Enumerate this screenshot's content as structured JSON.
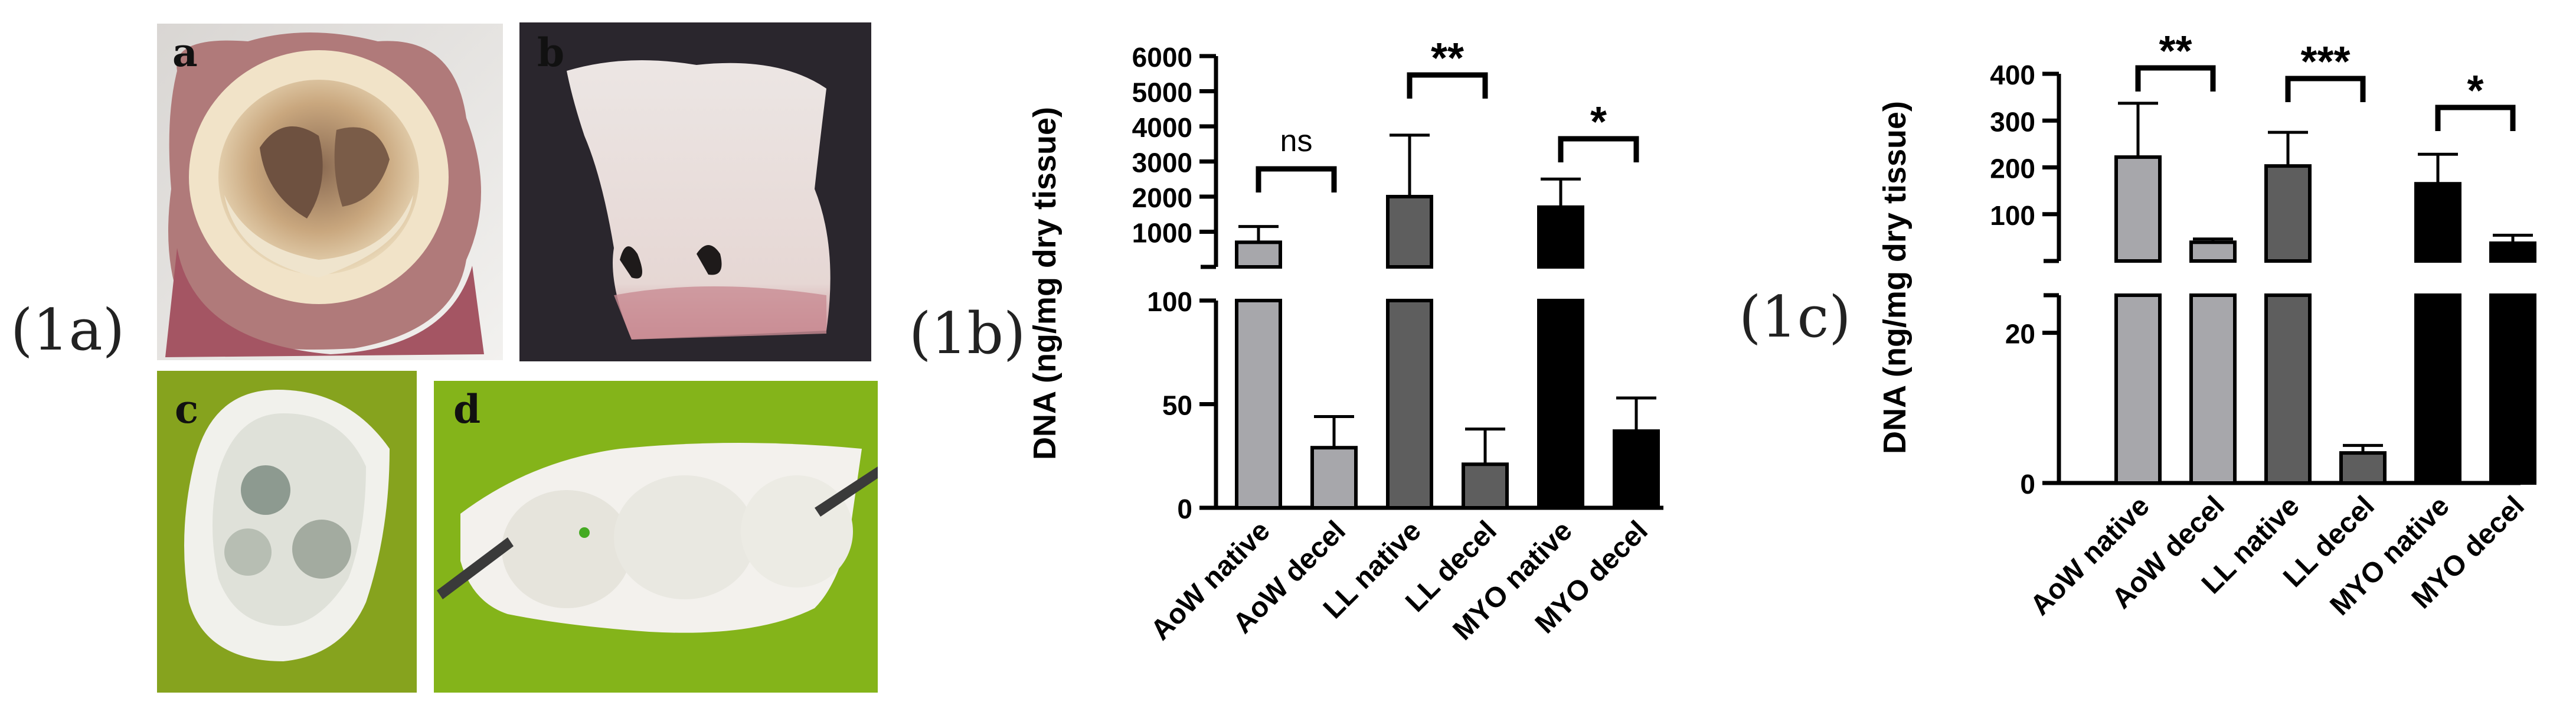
{
  "figure": {
    "panel_labels": [
      "(1a)",
      "(1b)",
      "(1c)"
    ],
    "photo_letters": [
      "a",
      "b",
      "c",
      "d"
    ]
  },
  "colors": {
    "aow": "#a7a7ab",
    "ll": "#5e5e5e",
    "myo": "#000000"
  },
  "chart_data": [
    {
      "panel": "(1b)",
      "type": "bar",
      "ylabel": "DNA (ng/mg dry tissue)",
      "categories": [
        "AoW native",
        "AoW decel",
        "LL native",
        "LL decel",
        "MYO native",
        "MYO decel"
      ],
      "values": [
        700,
        29,
        2000,
        21,
        1700,
        37
      ],
      "errors": [
        450,
        15,
        1750,
        17,
        800,
        16
      ],
      "bar_colors": [
        "#a7a7ab",
        "#a7a7ab",
        "#5e5e5e",
        "#5e5e5e",
        "#000000",
        "#000000"
      ],
      "broken_axis": {
        "lower": {
          "range": [
            0,
            100
          ],
          "ticks": [
            0,
            50,
            100
          ]
        },
        "upper": {
          "range": [
            0,
            6000
          ],
          "ticks": [
            1000,
            2000,
            3000,
            4000,
            5000,
            6000
          ]
        }
      },
      "significance": [
        {
          "pair": [
            0,
            1
          ],
          "label": "ns"
        },
        {
          "pair": [
            2,
            3
          ],
          "label": "**"
        },
        {
          "pair": [
            4,
            5
          ],
          "label": "*"
        }
      ]
    },
    {
      "panel": "(1c)",
      "type": "bar",
      "ylabel": "DNA (ng/mg dry tissue)",
      "categories": [
        "AoW native",
        "AoW decel",
        "LL native",
        "LL decel",
        "MYO native",
        "MYO decel"
      ],
      "values": [
        222,
        40,
        203,
        4,
        165,
        38
      ],
      "errors": [
        115,
        7,
        72,
        1,
        63,
        17
      ],
      "bar_colors": [
        "#a7a7ab",
        "#a7a7ab",
        "#5e5e5e",
        "#5e5e5e",
        "#000000",
        "#000000"
      ],
      "broken_axis": {
        "lower": {
          "range": [
            0,
            25
          ],
          "ticks": [
            0,
            20
          ]
        },
        "upper": {
          "range": [
            0,
            400
          ],
          "ticks": [
            100,
            200,
            300,
            400
          ]
        }
      },
      "significance": [
        {
          "pair": [
            0,
            1
          ],
          "label": "**"
        },
        {
          "pair": [
            2,
            3
          ],
          "label": "***"
        },
        {
          "pair": [
            4,
            5
          ],
          "label": "*"
        }
      ]
    }
  ]
}
